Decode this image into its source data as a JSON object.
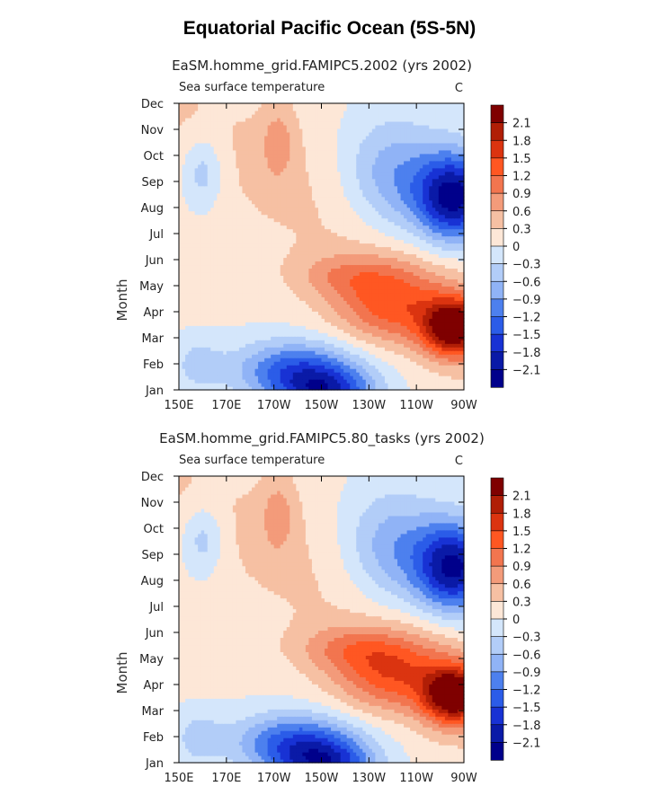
{
  "title": "Equatorial Pacific Ocean (5S-5N)",
  "colorbar": {
    "levels": [
      "2.1",
      "1.8",
      "1.5",
      "1.2",
      "0.9",
      "0.6",
      "0.3",
      "0",
      "−0.3",
      "−0.6",
      "−0.9",
      "−1.2",
      "−1.5",
      "−1.8",
      "−2.1"
    ],
    "colors": [
      "#7f0000",
      "#b01e06",
      "#db3410",
      "#ff5722",
      "#f2754f",
      "#f39b7a",
      "#f6c0a3",
      "#fde7d7",
      "#d4e6fb",
      "#b2cdf8",
      "#90b3f6",
      "#4d80ee",
      "#2b5ce8",
      "#1832d4",
      "#0a1aa7",
      "#00008b"
    ]
  },
  "chart_data": [
    {
      "type": "heatmap",
      "title": "EaSM.homme_grid.FAMIPC5.2002 (yrs 2002)",
      "subtitle": "Sea surface temperature",
      "units": "C",
      "xlabel": "",
      "ylabel": "Month",
      "x_ticks": [
        "150E",
        "170E",
        "170W",
        "150W",
        "130W",
        "110W",
        "90W"
      ],
      "y_ticks": [
        "Jan",
        "Feb",
        "Mar",
        "Apr",
        "May",
        "Jun",
        "Jul",
        "Aug",
        "Sep",
        "Oct",
        "Nov",
        "Dec"
      ],
      "x_lon_range": [
        150,
        270
      ],
      "month_range": [
        1,
        12
      ],
      "ridge_value": 0.3,
      "features": [
        {
          "lon": 266,
          "month": 3.4,
          "amp": 2.3,
          "sx": 13,
          "sy": 1.1
        },
        {
          "lon": 240,
          "month": 4.2,
          "amp": 1.1,
          "sx": 24,
          "sy": 1.4
        },
        {
          "lon": 222,
          "month": 5.4,
          "amp": 0.6,
          "sx": 24,
          "sy": 0.9
        },
        {
          "lon": 266,
          "month": 8.4,
          "amp": -2.3,
          "sx": 16,
          "sy": 1.7
        },
        {
          "lon": 240,
          "month": 9.2,
          "amp": -0.9,
          "sx": 20,
          "sy": 2.2
        },
        {
          "lon": 200,
          "month": 1.8,
          "amp": -1.4,
          "sx": 26,
          "sy": 1.1
        },
        {
          "lon": 212,
          "month": 0.9,
          "amp": -1.5,
          "sx": 20,
          "sy": 0.9
        },
        {
          "lon": 192,
          "month": 10.6,
          "amp": 0.5,
          "sx": 8,
          "sy": 1.6
        },
        {
          "lon": 160,
          "month": 9.4,
          "amp": -0.65,
          "sx": 9,
          "sy": 1.4
        },
        {
          "lon": 158,
          "month": 2.0,
          "amp": -0.45,
          "sx": 10,
          "sy": 1.0
        }
      ]
    },
    {
      "type": "heatmap",
      "title": "EaSM.homme_grid.FAMIPC5.80_tasks (yrs 2002)",
      "subtitle": "Sea surface temperature",
      "units": "C",
      "xlabel": "",
      "ylabel": "Month",
      "x_ticks": [
        "150E",
        "170E",
        "170W",
        "150W",
        "130W",
        "110W",
        "90W"
      ],
      "y_ticks": [
        "Jan",
        "Feb",
        "Mar",
        "Apr",
        "May",
        "Jun",
        "Jul",
        "Aug",
        "Sep",
        "Oct",
        "Nov",
        "Dec"
      ],
      "x_lon_range": [
        150,
        270
      ],
      "month_range": [
        1,
        12
      ],
      "ridge_value": 0.3,
      "features": [
        {
          "lon": 266,
          "month": 3.6,
          "amp": 2.3,
          "sx": 13,
          "sy": 1.1
        },
        {
          "lon": 240,
          "month": 4.4,
          "amp": 1.15,
          "sx": 24,
          "sy": 1.4
        },
        {
          "lon": 222,
          "month": 5.4,
          "amp": 0.6,
          "sx": 24,
          "sy": 0.9
        },
        {
          "lon": 266,
          "month": 8.5,
          "amp": -2.2,
          "sx": 16,
          "sy": 1.7
        },
        {
          "lon": 240,
          "month": 9.2,
          "amp": -0.9,
          "sx": 20,
          "sy": 2.2
        },
        {
          "lon": 200,
          "month": 1.8,
          "amp": -1.45,
          "sx": 26,
          "sy": 1.1
        },
        {
          "lon": 212,
          "month": 0.9,
          "amp": -1.5,
          "sx": 20,
          "sy": 0.9
        },
        {
          "lon": 192,
          "month": 10.6,
          "amp": 0.5,
          "sx": 8,
          "sy": 1.6
        },
        {
          "lon": 160,
          "month": 9.6,
          "amp": -0.65,
          "sx": 9,
          "sy": 1.4
        },
        {
          "lon": 158,
          "month": 2.0,
          "amp": -0.45,
          "sx": 10,
          "sy": 1.0
        }
      ]
    }
  ]
}
